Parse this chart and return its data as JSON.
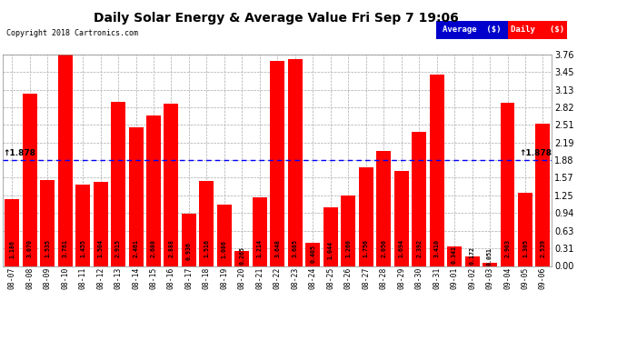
{
  "title": "Daily Solar Energy & Average Value Fri Sep 7 19:06",
  "copyright": "Copyright 2018 Cartronics.com",
  "average_value": 1.878,
  "bar_color": "#FF0000",
  "average_line_color": "#0000FF",
  "background_color": "#FFFFFF",
  "plot_bg_color": "#FFFFFF",
  "grid_color": "#AAAAAA",
  "categories": [
    "08-07",
    "08-08",
    "08-09",
    "08-10",
    "08-11",
    "08-12",
    "08-13",
    "08-14",
    "08-15",
    "08-16",
    "08-17",
    "08-18",
    "08-19",
    "08-20",
    "08-21",
    "08-22",
    "08-23",
    "08-24",
    "08-25",
    "08-26",
    "08-27",
    "08-28",
    "08-29",
    "08-30",
    "08-31",
    "09-01",
    "09-02",
    "09-03",
    "09-04",
    "09-05",
    "09-06"
  ],
  "values": [
    1.186,
    3.07,
    1.535,
    3.761,
    1.455,
    1.504,
    2.915,
    2.461,
    2.68,
    2.888,
    0.936,
    1.516,
    1.086,
    0.265,
    1.214,
    3.648,
    3.685,
    0.405,
    1.044,
    1.26,
    1.756,
    2.05,
    1.694,
    2.392,
    3.41,
    0.341,
    0.172,
    0.051,
    2.903,
    1.305,
    2.539
  ],
  "ylim": [
    0.0,
    3.76
  ],
  "yticks": [
    0.0,
    0.31,
    0.63,
    0.94,
    1.25,
    1.57,
    1.88,
    2.19,
    2.51,
    2.82,
    3.13,
    3.45,
    3.76
  ],
  "legend_avg_color": "#0000CC",
  "legend_daily_color": "#FF0000",
  "avg_label": "Average  ($)",
  "daily_label": "Daily   ($)"
}
